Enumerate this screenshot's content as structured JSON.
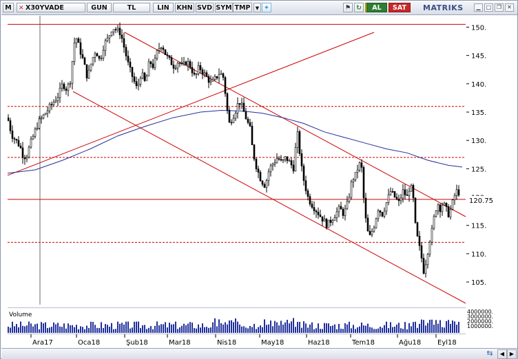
{
  "toolbar": {
    "m_label": "M",
    "symbol": "X30YVADE",
    "buttons": [
      "GUN",
      "TL",
      "LIN",
      "KHN",
      "SVD",
      "SYM",
      "TMP"
    ],
    "al_label": "AL",
    "sat_label": "SAT",
    "brand": "MATRIKS"
  },
  "price_axis": {
    "ticks": [
      "150.",
      "145.",
      "140.",
      "135.",
      "130.",
      "125.",
      "120.",
      "115.",
      "110.",
      "105."
    ],
    "last_price": "120.75"
  },
  "volume": {
    "label": "Volume",
    "ticks": [
      "4000000.",
      "3000000.",
      "2000000.",
      "1000000."
    ]
  },
  "x_axis": {
    "labels": [
      "Ara17",
      "Oca18",
      "Şub18",
      "Mar18",
      "Nis18",
      "May18",
      "Haz18",
      "Tem18",
      "Ağu18",
      "Eyl18"
    ]
  },
  "colors": {
    "candle": "#000000",
    "trendline": "#cc0000",
    "moving_average": "#1f2f9a",
    "toolbar_bg": "#dfe3ea"
  },
  "chart_data": {
    "type": "candlestick",
    "title": "X30YVADE",
    "ylim": [
      101,
      152
    ],
    "horizontal_levels": [
      150.5,
      136,
      127,
      119.6,
      112
    ],
    "last_value": 120.75,
    "close_path": [
      [
        0,
        134
      ],
      [
        6,
        131
      ],
      [
        12,
        130
      ],
      [
        18,
        129
      ],
      [
        22,
        127.5
      ],
      [
        27,
        127
      ],
      [
        32,
        129
      ],
      [
        38,
        131
      ],
      [
        44,
        133
      ],
      [
        50,
        134
      ],
      [
        56,
        135
      ],
      [
        62,
        136
      ],
      [
        68,
        137
      ],
      [
        74,
        138
      ],
      [
        80,
        140
      ],
      [
        86,
        139
      ],
      [
        92,
        141
      ],
      [
        96,
        147
      ],
      [
        100,
        148
      ],
      [
        105,
        146
      ],
      [
        110,
        144
      ],
      [
        116,
        141
      ],
      [
        122,
        144
      ],
      [
        128,
        146
      ],
      [
        134,
        144
      ],
      [
        140,
        147
      ],
      [
        146,
        148
      ],
      [
        152,
        150
      ],
      [
        158,
        149.5
      ],
      [
        164,
        149
      ],
      [
        170,
        146
      ],
      [
        176,
        143
      ],
      [
        182,
        141
      ],
      [
        188,
        139
      ],
      [
        194,
        142
      ],
      [
        200,
        140
      ],
      [
        206,
        144
      ],
      [
        212,
        143
      ],
      [
        218,
        146
      ],
      [
        224,
        147
      ],
      [
        230,
        145
      ],
      [
        236,
        144
      ],
      [
        242,
        143
      ],
      [
        248,
        144
      ],
      [
        254,
        143
      ],
      [
        260,
        144
      ],
      [
        266,
        143
      ],
      [
        272,
        141
      ],
      [
        278,
        143
      ],
      [
        284,
        142
      ],
      [
        290,
        141
      ],
      [
        296,
        140
      ],
      [
        302,
        141
      ],
      [
        308,
        142
      ],
      [
        314,
        141
      ],
      [
        318,
        136
      ],
      [
        322,
        133
      ],
      [
        326,
        134
      ],
      [
        330,
        135
      ],
      [
        336,
        137
      ],
      [
        340,
        136
      ],
      [
        346,
        134
      ],
      [
        352,
        132
      ],
      [
        356,
        128
      ],
      [
        362,
        125
      ],
      [
        368,
        123
      ],
      [
        374,
        122
      ],
      [
        380,
        125
      ],
      [
        386,
        126
      ],
      [
        392,
        127
      ],
      [
        398,
        126
      ],
      [
        404,
        127
      ],
      [
        410,
        126
      ],
      [
        416,
        125
      ],
      [
        420,
        132
      ],
      [
        424,
        128
      ],
      [
        428,
        124
      ],
      [
        432,
        122
      ],
      [
        436,
        120
      ],
      [
        440,
        119
      ],
      [
        446,
        118
      ],
      [
        452,
        117
      ],
      [
        458,
        116
      ],
      [
        464,
        115
      ],
      [
        470,
        116
      ],
      [
        476,
        117
      ],
      [
        482,
        118
      ],
      [
        488,
        117
      ],
      [
        494,
        119
      ],
      [
        500,
        123
      ],
      [
        506,
        124
      ],
      [
        510,
        126
      ],
      [
        514,
        125
      ],
      [
        518,
        118
      ],
      [
        522,
        114
      ],
      [
        526,
        113
      ],
      [
        532,
        115
      ],
      [
        538,
        118
      ],
      [
        544,
        117
      ],
      [
        550,
        119
      ],
      [
        556,
        121
      ],
      [
        562,
        120
      ],
      [
        568,
        119
      ],
      [
        574,
        121
      ],
      [
        580,
        120
      ],
      [
        584,
        122
      ],
      [
        588,
        121
      ],
      [
        592,
        115
      ],
      [
        596,
        112
      ],
      [
        600,
        110
      ],
      [
        604,
        107
      ],
      [
        608,
        109
      ],
      [
        612,
        112
      ],
      [
        616,
        114
      ],
      [
        620,
        117
      ],
      [
        624,
        119
      ],
      [
        628,
        118
      ],
      [
        632,
        119
      ],
      [
        636,
        118
      ],
      [
        640,
        117
      ],
      [
        644,
        118
      ],
      [
        648,
        120
      ],
      [
        652,
        121
      ],
      [
        656,
        120.75
      ]
    ],
    "moving_average": [
      [
        0,
        124.2
      ],
      [
        40,
        124.8
      ],
      [
        80,
        126.5
      ],
      [
        120,
        128.5
      ],
      [
        160,
        130.8
      ],
      [
        200,
        132.5
      ],
      [
        240,
        134
      ],
      [
        280,
        135
      ],
      [
        310,
        135.3
      ],
      [
        340,
        135.2
      ],
      [
        370,
        134.8
      ],
      [
        400,
        134
      ],
      [
        430,
        133
      ],
      [
        460,
        131.5
      ],
      [
        490,
        130.5
      ],
      [
        520,
        129.5
      ],
      [
        550,
        128.5
      ],
      [
        580,
        127.8
      ],
      [
        610,
        126.5
      ],
      [
        640,
        125.6
      ],
      [
        660,
        125.3
      ]
    ]
  }
}
